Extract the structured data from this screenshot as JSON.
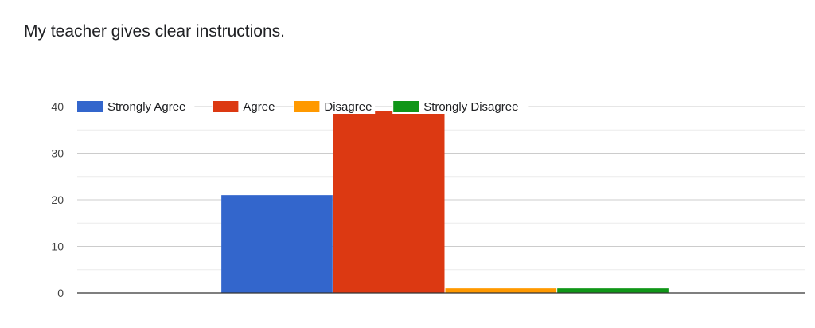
{
  "chart_data": {
    "type": "bar",
    "title": "My teacher gives clear instructions.",
    "xlabel": "",
    "ylabel": "",
    "ylim": [
      0,
      40
    ],
    "yticks": [
      0,
      10,
      20,
      30,
      40
    ],
    "grid": true,
    "legend_position": "top",
    "categories": [
      ""
    ],
    "series": [
      {
        "name": "Strongly Agree",
        "color": "#3366cc",
        "values": [
          21
        ]
      },
      {
        "name": "Agree",
        "color": "#dc3912",
        "values": [
          39
        ]
      },
      {
        "name": "Disagree",
        "color": "#ff9900",
        "values": [
          1
        ]
      },
      {
        "name": "Strongly Disagree",
        "color": "#109618",
        "values": [
          1
        ]
      }
    ]
  }
}
